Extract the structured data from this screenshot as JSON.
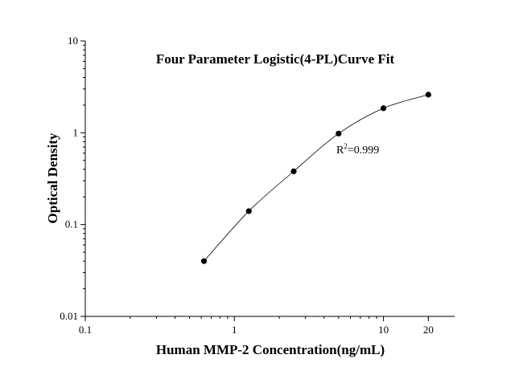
{
  "chart_data": {
    "type": "scatter",
    "title": "Four Parameter Logistic(4-PL)Curve Fit",
    "xlabel": "Human MMP-2 Concentration(ng/mL)",
    "ylabel": "Optical Density",
    "x_scale": "log",
    "y_scale": "log",
    "xlim": [
      0.1,
      30
    ],
    "ylim": [
      0.01,
      10
    ],
    "x_ticks": [
      0.1,
      1,
      10,
      20
    ],
    "x_tick_labels": [
      "0.1",
      "1",
      "10",
      "20"
    ],
    "y_ticks": [
      0.01,
      0.1,
      1,
      10
    ],
    "y_tick_labels": [
      "0.01",
      "0.1",
      "1",
      "10"
    ],
    "grid": false,
    "series": [
      {
        "x": [
          0.625,
          1.25,
          2.5,
          5,
          10,
          20
        ],
        "y": [
          0.04,
          0.14,
          0.38,
          0.98,
          1.85,
          2.6
        ]
      }
    ],
    "fit": {
      "type": "4PL",
      "annotation_prefix": "R",
      "annotation_sup": "2",
      "annotation_value": "=0.999"
    },
    "colors": {
      "line": "#000000",
      "marker": "#000000",
      "axis": "#000000"
    }
  }
}
